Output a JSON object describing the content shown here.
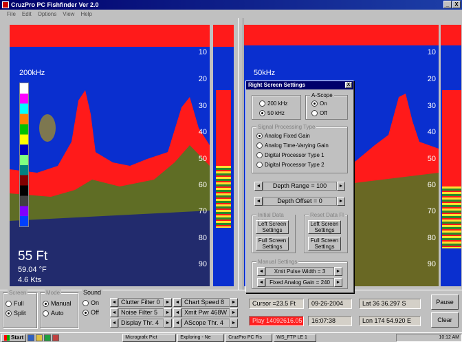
{
  "window": {
    "title": "CruzPro PC Fishfinder Ver 2.0",
    "minimize": "_",
    "close": "X"
  },
  "menu": [
    "File",
    "Edit",
    "Options",
    "View",
    "Help"
  ],
  "left_pane": {
    "frequency": "200kHz",
    "depth_ticks": [
      "10",
      "20",
      "30",
      "40",
      "50",
      "60",
      "70",
      "80",
      "90"
    ],
    "depth": "55 Ft",
    "temperature": "59.04",
    "temp_unit": "°F",
    "speed": "4.6 Kts"
  },
  "right_pane": {
    "frequency": "50kHz",
    "depth_ticks": [
      "10",
      "20",
      "30",
      "40",
      "50",
      "60",
      "70",
      "80",
      "90"
    ]
  },
  "colors": {
    "water": "#0a2fcf",
    "strong_echo": "#ff1a1a",
    "colorbar": [
      "#ffffff",
      "#ff00ff",
      "#00ffff",
      "#ff8000",
      "#00c000",
      "#ffff00",
      "#0000c0",
      "#80ff80",
      "#008080",
      "#800000",
      "#000000",
      "#404040",
      "#8000ff",
      "#0040ff"
    ]
  },
  "controls": {
    "screen": {
      "title": "Screen",
      "options": [
        "Full",
        "Split"
      ],
      "selected": "Split"
    },
    "mode": {
      "title": "Mode",
      "options": [
        "Manual",
        "Auto"
      ],
      "selected": "Manual"
    },
    "sound": {
      "title": "Sound",
      "options": [
        "On",
        "Off"
      ],
      "selected": "Off"
    },
    "clutter_filter": "Clutter Filter 0",
    "noise_filter": "Noise Filter 5",
    "display_thr": "Display Thr. 4",
    "chart_speed": "Chart Speed 8",
    "xmit_pwr": "Xmit Pwr 468W",
    "ascope_thr": "AScope Thr. 4",
    "cursor": "Cursor =23.5 Ft",
    "date": "09-26-2004",
    "time": "16:07:38",
    "alarm": "Play 14092616.05",
    "lat": "Lat 36  36.297 S",
    "lon": "Lon 174  54.920 E",
    "pause": "Pause",
    "clear": "Clear"
  },
  "dialog": {
    "title": "Right Screen Settings",
    "close": "X",
    "freq_options": [
      "200 kHz",
      "50 kHz"
    ],
    "freq_selected": "50 kHz",
    "ascope_title": "A-Scope",
    "ascope_options": [
      "On",
      "Off"
    ],
    "ascope_selected": "On",
    "signal_title": "Signal Processing Type",
    "signal_options": [
      "Analog Fixed Gain",
      "Analog Time-Varying Gain",
      "Digital Processor Type 1",
      "Digital Processor Type 2"
    ],
    "signal_selected": "Analog Fixed Gain",
    "depth_range": "Depth Range = 100",
    "depth_offset": "Depth Offset = 0",
    "initial_title": "Initial Data Low",
    "reset_title": "Reset Data Fl",
    "left_btn": "Left Screen Settings",
    "left_btn2": "Left Screen Settings",
    "full_btn": "Full Screen Settings",
    "full_btn2": "Full Screen Settings",
    "manual_title": "Manual Settings",
    "xmit_width": "Xmit Pulse Width = 3",
    "fixed_gain": "Fixed Analog Gain = 240"
  },
  "taskbar": {
    "start": "Start",
    "items": [
      "Micrografx Pict",
      "Exploring - Ne",
      "CruzPro PC Fis",
      "WS_FTP LE 1"
    ],
    "tray": "10:12 AM"
  }
}
